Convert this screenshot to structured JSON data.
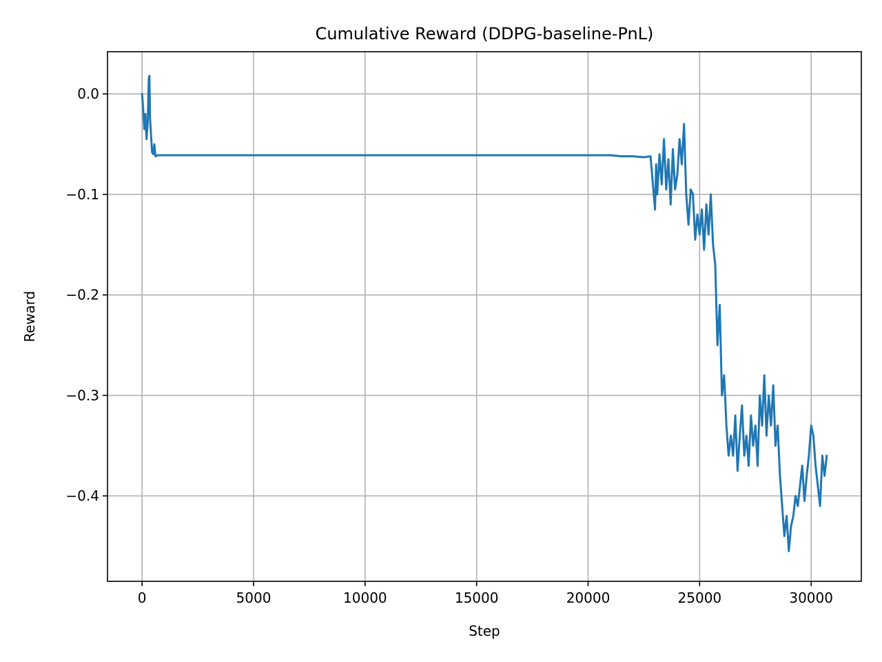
{
  "chart_data": {
    "type": "line",
    "title": "Cumulative Reward (DDPG-baseline-PnL)",
    "xlabel": "Step",
    "ylabel": "Reward",
    "xlim": [
      -1550,
      32250
    ],
    "ylim": [
      -0.485,
      0.042
    ],
    "xticks": [
      0,
      5000,
      10000,
      15000,
      20000,
      25000,
      30000
    ],
    "xtick_labels": [
      "0",
      "5000",
      "10000",
      "15000",
      "20000",
      "25000",
      "30000"
    ],
    "yticks": [
      0.0,
      -0.1,
      -0.2,
      -0.3,
      -0.4
    ],
    "ytick_labels": [
      "0.0",
      "−0.1",
      "−0.2",
      "−0.3",
      "−0.4"
    ],
    "grid": true,
    "legend": "none",
    "series": [
      {
        "color": "#1f77b4",
        "x": [
          0,
          50,
          100,
          150,
          200,
          250,
          300,
          330,
          360,
          400,
          450,
          500,
          550,
          600,
          700,
          1000,
          5000,
          10000,
          15000,
          20000,
          21000,
          21500,
          22000,
          22500,
          22800,
          23000,
          23050,
          23100,
          23200,
          23300,
          23400,
          23500,
          23600,
          23700,
          23800,
          23900,
          24000,
          24100,
          24200,
          24300,
          24400,
          24500,
          24600,
          24700,
          24800,
          24900,
          25000,
          25100,
          25200,
          25300,
          25400,
          25500,
          25600,
          25700,
          25800,
          25900,
          26000,
          26100,
          26200,
          26300,
          26400,
          26500,
          26600,
          26700,
          26800,
          26900,
          27000,
          27100,
          27200,
          27300,
          27400,
          27500,
          27600,
          27700,
          27800,
          27900,
          28000,
          28100,
          28200,
          28300,
          28400,
          28500,
          28600,
          28700,
          28800,
          28900,
          29000,
          29100,
          29200,
          29300,
          29400,
          29500,
          29600,
          29700,
          29800,
          29900,
          30000,
          30100,
          30200,
          30300,
          30400,
          30500,
          30600,
          30700
        ],
        "y": [
          0.0,
          -0.015,
          -0.035,
          -0.02,
          -0.045,
          -0.03,
          0.015,
          0.018,
          -0.025,
          -0.04,
          -0.058,
          -0.06,
          -0.05,
          -0.062,
          -0.061,
          -0.061,
          -0.061,
          -0.061,
          -0.061,
          -0.061,
          -0.061,
          -0.062,
          -0.062,
          -0.063,
          -0.062,
          -0.115,
          -0.07,
          -0.1,
          -0.06,
          -0.09,
          -0.045,
          -0.095,
          -0.065,
          -0.11,
          -0.055,
          -0.095,
          -0.08,
          -0.045,
          -0.07,
          -0.03,
          -0.1,
          -0.13,
          -0.095,
          -0.1,
          -0.145,
          -0.12,
          -0.14,
          -0.115,
          -0.155,
          -0.11,
          -0.14,
          -0.1,
          -0.15,
          -0.17,
          -0.25,
          -0.21,
          -0.3,
          -0.28,
          -0.33,
          -0.36,
          -0.34,
          -0.36,
          -0.32,
          -0.375,
          -0.34,
          -0.31,
          -0.36,
          -0.34,
          -0.37,
          -0.32,
          -0.35,
          -0.33,
          -0.37,
          -0.3,
          -0.33,
          -0.28,
          -0.34,
          -0.3,
          -0.33,
          -0.29,
          -0.35,
          -0.33,
          -0.38,
          -0.41,
          -0.44,
          -0.42,
          -0.455,
          -0.43,
          -0.42,
          -0.4,
          -0.41,
          -0.39,
          -0.37,
          -0.405,
          -0.38,
          -0.36,
          -0.33,
          -0.34,
          -0.37,
          -0.39,
          -0.41,
          -0.36,
          -0.38,
          -0.36
        ]
      }
    ]
  }
}
